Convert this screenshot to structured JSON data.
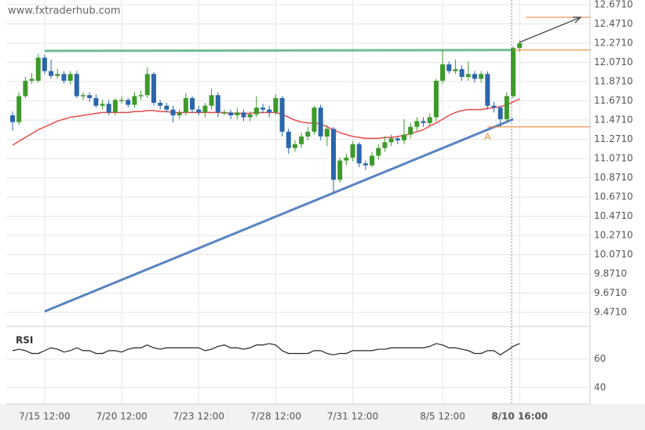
{
  "chart_data": {
    "type": "candlestick",
    "watermark": "www.fxtraderhub.com",
    "categories": [
      null,
      null,
      null,
      null,
      null,
      "7/15 12:00",
      null,
      null,
      null,
      null,
      null,
      null,
      null,
      null,
      null,
      null,
      null,
      "7/20 12:00",
      null,
      null,
      null,
      null,
      null,
      null,
      null,
      null,
      null,
      null,
      null,
      "7/23 12:00",
      null,
      null,
      null,
      null,
      null,
      null,
      null,
      null,
      null,
      null,
      null,
      "7/28 12:00",
      null,
      null,
      null,
      null,
      null,
      null,
      null,
      null,
      null,
      null,
      null,
      "7/31 12:00",
      null,
      null,
      null,
      null,
      null,
      null,
      null,
      null,
      null,
      null,
      null,
      null,
      null,
      "8/5 12:00",
      null,
      null,
      null,
      null,
      null,
      null,
      null,
      null,
      null,
      null,
      null,
      "8/10 16:00",
      null
    ],
    "ylim": [
      9.332,
      12.72
    ],
    "yticks": [
      {
        "value": 12.671,
        "label": "12.6710"
      },
      {
        "value": 12.471,
        "label": "12.4710"
      },
      {
        "value": 12.271,
        "label": "12.2710"
      },
      {
        "value": 12.071,
        "label": "12.0710"
      },
      {
        "value": 11.871,
        "label": "11.8710"
      },
      {
        "value": 11.671,
        "label": "11.6710"
      },
      {
        "value": 11.471,
        "label": "11.4710"
      },
      {
        "value": 11.271,
        "label": "11.2710"
      },
      {
        "value": 11.071,
        "label": "11.0710"
      },
      {
        "value": 10.871,
        "label": "10.8710"
      },
      {
        "value": 10.671,
        "label": "10.6710"
      },
      {
        "value": 10.471,
        "label": "10.4710"
      },
      {
        "value": 10.271,
        "label": "10.2710"
      },
      {
        "value": 10.071,
        "label": "10.0710"
      },
      {
        "value": 9.871,
        "label": "9.8710"
      },
      {
        "value": 9.671,
        "label": "9.6710"
      },
      {
        "value": 9.471,
        "label": "9.4710"
      }
    ],
    "grid": true,
    "up_color": "#3d9a2a",
    "down_color": "#2b66ad",
    "candles": {
      "open": [
        11.52,
        11.45,
        11.72,
        11.88,
        11.88,
        12.12,
        11.98,
        11.93,
        11.95,
        11.88,
        11.95,
        11.72,
        11.73,
        11.7,
        11.62,
        11.64,
        11.55,
        11.68,
        11.68,
        11.63,
        11.72,
        11.73,
        11.95,
        11.65,
        11.62,
        11.58,
        11.52,
        11.55,
        11.7,
        11.58,
        11.55,
        11.62,
        11.73,
        11.55,
        11.55,
        11.52,
        11.55,
        11.5,
        11.53,
        11.6,
        11.58,
        11.55,
        11.7,
        11.35,
        11.18,
        11.22,
        11.3,
        11.35,
        11.6,
        11.3,
        11.38,
        10.85,
        11.05,
        11.08,
        11.22,
        11.02,
        11.0,
        11.1,
        11.18,
        11.24,
        11.28,
        11.26,
        11.32,
        11.4,
        11.46,
        11.44,
        11.5,
        11.88,
        12.05,
        11.98,
        12.0,
        11.92,
        11.95,
        11.9,
        11.95,
        11.62,
        11.6,
        11.48,
        11.72,
        12.22
      ],
      "high": [
        11.56,
        11.76,
        11.92,
        11.96,
        12.16,
        12.15,
        12.1,
        12.0,
        11.98,
        11.98,
        11.98,
        11.76,
        11.76,
        11.74,
        11.68,
        11.68,
        11.7,
        11.72,
        11.7,
        11.76,
        11.78,
        12.02,
        11.97,
        11.68,
        11.65,
        11.62,
        11.58,
        11.75,
        11.72,
        11.62,
        11.65,
        11.8,
        11.76,
        11.58,
        11.58,
        11.6,
        11.58,
        11.56,
        11.72,
        11.64,
        11.62,
        11.74,
        11.72,
        11.38,
        11.26,
        11.34,
        11.4,
        11.62,
        11.63,
        11.42,
        11.4,
        11.08,
        11.12,
        11.25,
        11.24,
        11.05,
        11.14,
        11.22,
        11.3,
        11.32,
        11.3,
        11.48,
        11.44,
        11.5,
        11.5,
        11.54,
        11.9,
        12.2,
        12.08,
        12.1,
        12.04,
        12.08,
        11.98,
        11.98,
        11.98,
        11.66,
        11.62,
        11.76,
        12.24,
        12.3
      ],
      "low": [
        11.36,
        11.42,
        11.7,
        11.85,
        11.86,
        11.95,
        11.9,
        11.9,
        11.85,
        11.84,
        11.7,
        11.68,
        11.66,
        11.6,
        11.58,
        11.52,
        11.52,
        11.64,
        11.6,
        11.6,
        11.68,
        11.7,
        11.62,
        11.58,
        11.55,
        11.45,
        11.48,
        11.52,
        11.55,
        11.52,
        11.5,
        11.58,
        11.5,
        11.52,
        11.48,
        11.48,
        11.46,
        11.46,
        11.5,
        11.54,
        11.5,
        11.52,
        11.3,
        11.12,
        11.14,
        11.18,
        11.26,
        11.32,
        11.26,
        11.2,
        10.72,
        10.82,
        11.0,
        11.04,
        10.98,
        10.95,
        10.98,
        11.06,
        11.14,
        11.2,
        11.22,
        11.22,
        11.28,
        11.36,
        11.4,
        11.4,
        11.46,
        11.85,
        11.95,
        11.95,
        11.88,
        11.88,
        11.86,
        11.86,
        11.58,
        11.55,
        11.4,
        11.45,
        11.7,
        12.18
      ],
      "close": [
        11.45,
        11.72,
        11.88,
        11.9,
        12.12,
        11.98,
        11.93,
        11.95,
        11.88,
        11.95,
        11.72,
        11.73,
        11.7,
        11.62,
        11.64,
        11.55,
        11.68,
        11.68,
        11.63,
        11.72,
        11.73,
        11.95,
        11.65,
        11.62,
        11.58,
        11.52,
        11.55,
        11.7,
        11.58,
        11.55,
        11.62,
        11.73,
        11.55,
        11.55,
        11.52,
        11.55,
        11.5,
        11.53,
        11.6,
        11.58,
        11.55,
        11.7,
        11.35,
        11.18,
        11.22,
        11.3,
        11.35,
        11.6,
        11.3,
        11.38,
        10.85,
        11.05,
        11.08,
        11.22,
        11.02,
        11.0,
        11.1,
        11.18,
        11.24,
        11.28,
        11.26,
        11.32,
        11.4,
        11.46,
        11.44,
        11.5,
        11.88,
        12.05,
        11.98,
        12.0,
        11.92,
        11.95,
        11.9,
        11.95,
        11.62,
        11.6,
        11.48,
        11.72,
        12.22,
        12.27
      ]
    },
    "ma": {
      "color": "#e84a4a",
      "values": [
        11.21,
        11.25,
        11.29,
        11.33,
        11.37,
        11.4,
        11.43,
        11.46,
        11.48,
        11.5,
        11.51,
        11.52,
        11.53,
        11.54,
        11.55,
        11.55,
        11.55,
        11.55,
        11.55,
        11.56,
        11.56,
        11.57,
        11.57,
        11.56,
        11.56,
        11.55,
        11.55,
        11.55,
        11.55,
        11.55,
        11.55,
        11.55,
        11.55,
        11.55,
        11.54,
        11.54,
        11.54,
        11.54,
        11.55,
        11.55,
        11.55,
        11.55,
        11.53,
        11.5,
        11.47,
        11.45,
        11.44,
        11.44,
        11.43,
        11.4,
        11.37,
        11.34,
        11.32,
        11.3,
        11.29,
        11.28,
        11.28,
        11.28,
        11.29,
        11.29,
        11.3,
        11.31,
        11.33,
        11.35,
        11.37,
        11.41,
        11.44,
        11.48,
        11.52,
        11.55,
        11.57,
        11.58,
        11.58,
        11.58,
        11.59,
        11.6,
        11.61,
        11.63,
        11.66,
        11.69
      ]
    },
    "trendlines": [
      {
        "color": "#5a83c2",
        "x": [
          5,
          78
        ],
        "values": [
          9.48,
          11.48
        ]
      },
      {
        "color": "#72bd93",
        "x": [
          5,
          78
        ],
        "values": [
          12.19,
          12.2
        ]
      }
    ],
    "levels": [
      {
        "color": "#f0883c",
        "x": [
          80,
          90
        ],
        "values": [
          12.54,
          12.54
        ]
      },
      {
        "color": "#f0883c",
        "x": [
          78,
          90
        ],
        "values": [
          12.2,
          12.2
        ]
      },
      {
        "color": "#f0883c",
        "x": [
          74,
          90
        ],
        "values": [
          11.4,
          11.4
        ]
      }
    ],
    "arrow": {
      "color": "#444444",
      "x": [
        79,
        88.5
      ],
      "values": [
        12.28,
        12.54
      ]
    },
    "annotation": {
      "text": "A",
      "color": "#f0883c",
      "x": 74,
      "y": 11.29
    },
    "rsi": {
      "label": "RSI",
      "color": "#222222",
      "ylim": [
        31,
        82
      ],
      "yticks": [
        60,
        40
      ],
      "values": [
        66,
        67,
        66,
        64,
        64,
        66,
        68,
        67,
        65,
        66,
        68,
        66,
        66,
        64,
        64,
        66,
        66,
        65,
        67,
        68,
        68,
        70,
        68,
        67,
        68,
        68,
        68,
        68,
        68,
        68,
        66,
        67,
        69,
        70,
        68,
        68,
        67,
        68,
        70,
        70,
        71,
        70,
        66,
        64,
        64,
        64,
        64,
        66,
        66,
        64,
        63,
        64,
        64,
        66,
        66,
        66,
        66,
        67,
        67,
        68,
        68,
        68,
        68,
        68,
        68,
        69,
        71,
        70,
        68,
        68,
        67,
        66,
        64,
        64,
        66,
        66,
        63,
        66,
        69,
        71
      ]
    }
  }
}
